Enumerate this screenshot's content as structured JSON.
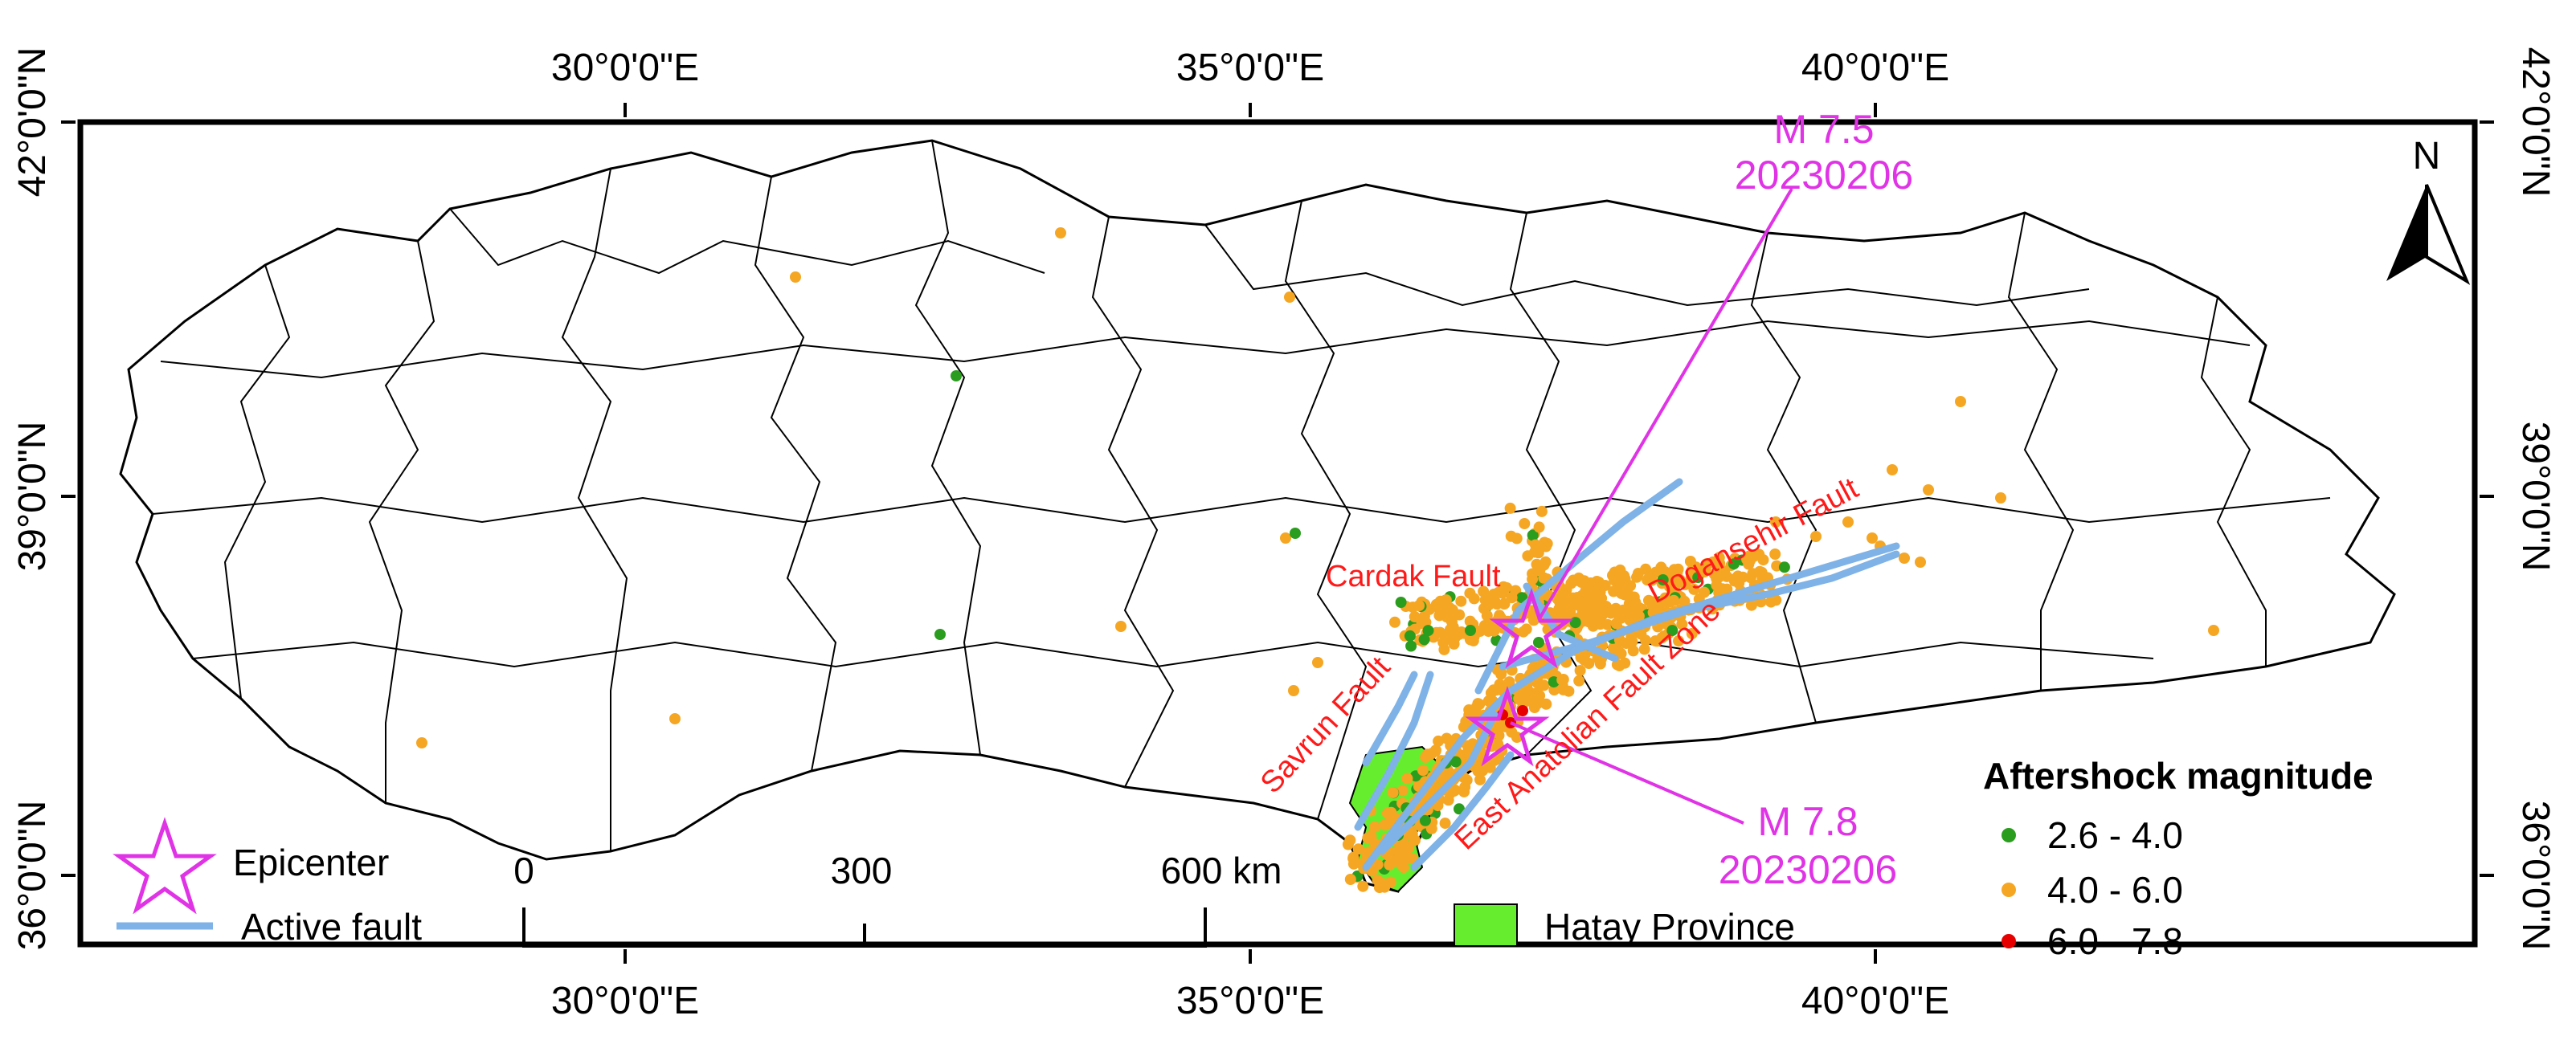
{
  "map": {
    "longitude_labels": [
      "30°0'0\"E",
      "35°0'0\"E",
      "40°0'0\"E"
    ],
    "latitude_labels": [
      "42°0'0\"N",
      "39°0'0\"N",
      "36°0'0\"N"
    ],
    "north_arrow_label": "N",
    "epicenters": [
      {
        "magnitude_label": "M 7.5",
        "date_label": "20230206",
        "lon": 37.2,
        "lat": 38.05
      },
      {
        "magnitude_label": "M 7.8",
        "date_label": "20230206",
        "lon": 37.0,
        "lat": 37.2
      }
    ],
    "faults": [
      {
        "name": "Cardak Fault"
      },
      {
        "name": "Dogansehir Fault"
      },
      {
        "name": "East Anatolian Fault Zone"
      },
      {
        "name": "Savrun Fault"
      }
    ],
    "colors": {
      "epicenter": "#e033e6",
      "fault": "#7fb2e6",
      "hatay": "#66ee2e",
      "mag_small": "#2a9d1e",
      "mag_mid": "#f5a623",
      "mag_large": "#e60000",
      "fault_label": "#ff1a1a"
    },
    "scale_bar": {
      "ticks": [
        "0",
        "300",
        "600 km"
      ]
    },
    "legend": {
      "epicenter_label": "Epicenter",
      "fault_label": "Active fault",
      "hatay_label": "Hatay Province"
    },
    "aftershock_legend": {
      "title": "Aftershock magnitude",
      "classes": [
        "2.6 - 4.0",
        "4.0 - 6.0",
        "6.0 - 7.8"
      ]
    }
  }
}
